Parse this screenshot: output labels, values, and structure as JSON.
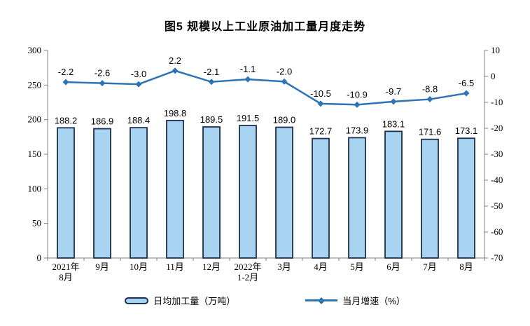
{
  "title": "图5 规模以上工业原油加工量月度走势",
  "colors": {
    "bar_fill": "#A8D4F2",
    "bar_border": "#1F3050",
    "line": "#2E74B5",
    "axis": "#808080",
    "text": "#000000",
    "background": "#FFFFFF"
  },
  "chart_data": {
    "type": "bar+line combo",
    "title": "图5 规模以上工业原油加工量月度走势",
    "categories": [
      [
        "2021年",
        "8月"
      ],
      [
        "9月"
      ],
      [
        "10月"
      ],
      [
        "11月"
      ],
      [
        "12月"
      ],
      [
        "2022年",
        "1-2月"
      ],
      [
        "3月"
      ],
      [
        "4月"
      ],
      [
        "5月"
      ],
      [
        "6月"
      ],
      [
        "7月"
      ],
      [
        "8月"
      ]
    ],
    "series": [
      {
        "name": "日均加工量（万吨）",
        "type": "bar",
        "axis": "left",
        "values": [
          188.2,
          186.9,
          188.4,
          198.8,
          189.5,
          191.5,
          189.0,
          172.7,
          173.9,
          183.1,
          171.6,
          173.1
        ]
      },
      {
        "name": "当月增速（%）",
        "type": "line",
        "axis": "right",
        "values": [
          -2.2,
          -2.6,
          -3.0,
          2.2,
          -2.1,
          -1.1,
          -2.0,
          -10.5,
          -10.9,
          -9.7,
          -8.8,
          -6.5
        ]
      }
    ],
    "left_axis": {
      "min": 0,
      "max": 300,
      "step": 50,
      "tick_labels": [
        "300",
        "250",
        "200",
        "150",
        "100",
        "50",
        "0"
      ]
    },
    "right_axis": {
      "min": -70,
      "max": 10,
      "step": 10,
      "tick_labels": [
        "10",
        "0",
        "-10",
        "-20",
        "-30",
        "-40",
        "-50",
        "-60",
        "-70"
      ]
    },
    "grid": false,
    "legend_position": "bottom",
    "data_labels_shown": true
  },
  "legend": {
    "bar_label": "日均加工量（万吨）",
    "line_label": "当月增速（%）"
  }
}
